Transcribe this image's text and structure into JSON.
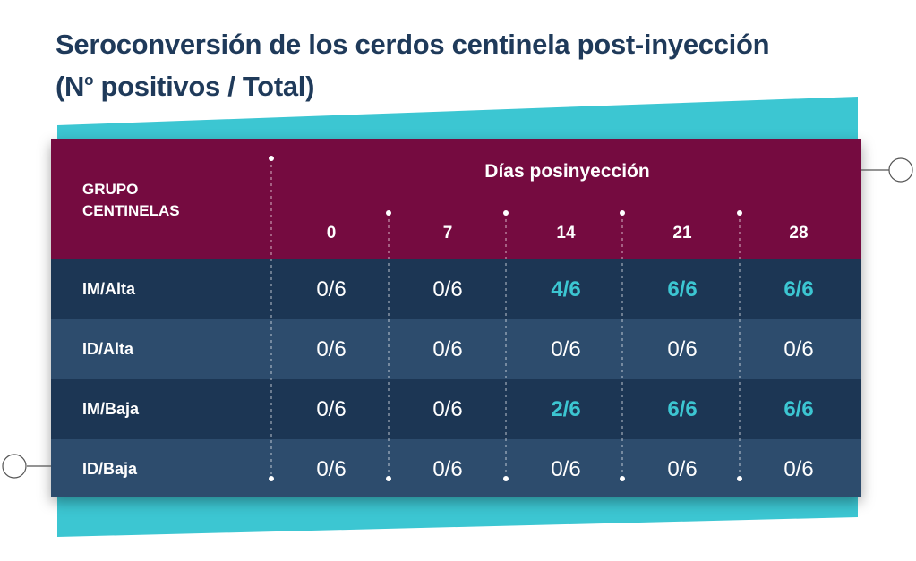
{
  "title_line1": "Seroconversión de los cerdos centinela post-inyección",
  "title_line2_pre": "(N",
  "title_line2_sup": "o",
  "title_line2_post": " positivos / Total)",
  "header": {
    "group_label": "GRUPO CENTINELAS",
    "days_label": "Días posinyección",
    "days": [
      "0",
      "7",
      "14",
      "21",
      "28"
    ]
  },
  "rows": [
    {
      "label": "IM/Alta",
      "values": [
        "0/6",
        "0/6",
        "4/6",
        "6/6",
        "6/6"
      ]
    },
    {
      "label": "ID/Alta",
      "values": [
        "0/6",
        "0/6",
        "0/6",
        "0/6",
        "0/6"
      ]
    },
    {
      "label": "IM/Baja",
      "values": [
        "0/6",
        "0/6",
        "2/6",
        "6/6",
        "6/6"
      ]
    },
    {
      "label": "ID/Baja",
      "values": [
        "0/6",
        "0/6",
        "0/6",
        "0/6",
        "0/6"
      ]
    }
  ],
  "colors": {
    "header_bg": "#750b40",
    "row_dark": "#1c3654",
    "row_light": "#2d4c6d",
    "highlight": "#3cc6d2",
    "teal_band": "#3cc6d2",
    "title": "#1f3a5a"
  }
}
